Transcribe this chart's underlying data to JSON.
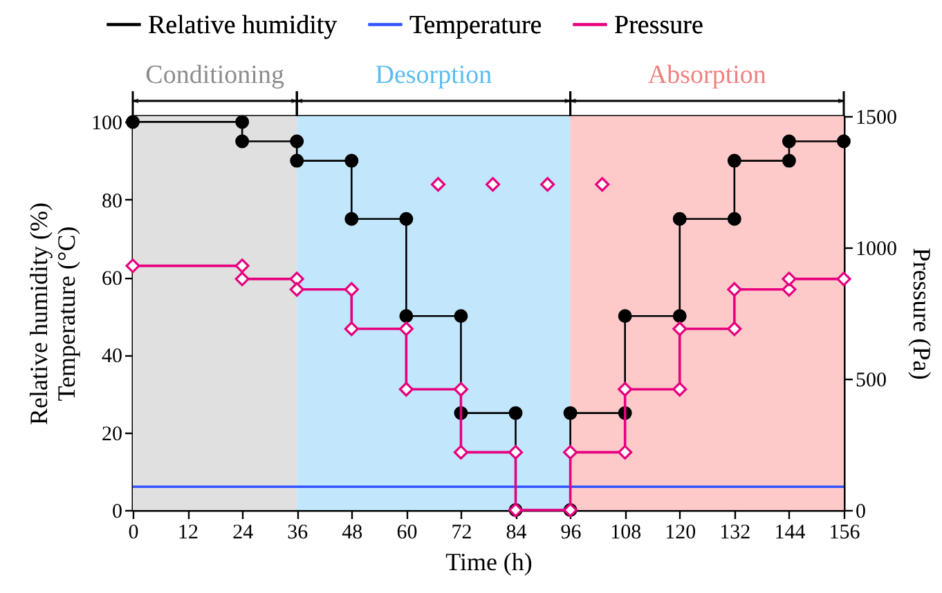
{
  "chart_data": {
    "type": "line",
    "xlabel": "Time (h)",
    "ylabel": "Relative humidity (%)\nTemperature (°C)",
    "y2label": "Pressure (Pa)",
    "xlim": [
      0,
      156
    ],
    "xticks": [
      0,
      12,
      24,
      36,
      48,
      60,
      72,
      84,
      96,
      108,
      120,
      132,
      144,
      156
    ],
    "ylim": [
      0,
      101.5
    ],
    "yticks": [
      0,
      20,
      40,
      60,
      80,
      100
    ],
    "y2lim": [
      0,
      1500
    ],
    "y2ticks": [
      0,
      500,
      1000,
      1500
    ],
    "grid": false,
    "legend": "top",
    "bands": [
      {
        "axis": "x",
        "from": 0,
        "to": 36,
        "label": "Conditioning",
        "color": "#e0e0e0"
      },
      {
        "axis": "x",
        "from": 36,
        "to": 96,
        "label": "Desorption",
        "color": "#c2e6fb"
      },
      {
        "axis": "x",
        "from": 96,
        "to": 156,
        "label": "Absorption",
        "color": "#fdc9c9"
      }
    ],
    "series": [
      {
        "name": "Relative humidity",
        "color": "#000000",
        "marker": "circle",
        "x": [
          0,
          24,
          24,
          36,
          36,
          48,
          48,
          60,
          60,
          72,
          72,
          84,
          84,
          96,
          96,
          108,
          108,
          120,
          120,
          132,
          132,
          144,
          144,
          156
        ],
        "values": [
          100,
          100,
          95,
          95,
          90,
          90,
          75,
          75,
          50,
          50,
          25,
          25,
          0,
          0,
          25,
          25,
          50,
          50,
          75,
          75,
          90,
          90,
          95,
          95
        ]
      },
      {
        "name": "Temperature",
        "color": "#3355ff",
        "marker": "none",
        "x": [
          0,
          156
        ],
        "values": [
          6,
          6
        ]
      },
      {
        "name": "Pressure",
        "color": "#e6007e",
        "marker": "diamond",
        "axis": "y2",
        "x": [
          0,
          24,
          24,
          36,
          36,
          48,
          48,
          60,
          60,
          72,
          72,
          84,
          84,
          96,
          96,
          108,
          108,
          120,
          120,
          132,
          132,
          144,
          144,
          156
        ],
        "values": [
          930,
          930,
          880,
          880,
          840,
          840,
          690,
          690,
          460,
          460,
          220,
          220,
          0,
          0,
          220,
          220,
          460,
          460,
          690,
          690,
          840,
          840,
          880,
          880
        ]
      },
      {
        "type": "scatter",
        "color": "#e6007e",
        "marker": "diamond",
        "axis": "y2",
        "x": [
          67,
          79,
          91,
          103
        ],
        "values": [
          1240,
          1240,
          1240,
          1240
        ]
      }
    ]
  }
}
